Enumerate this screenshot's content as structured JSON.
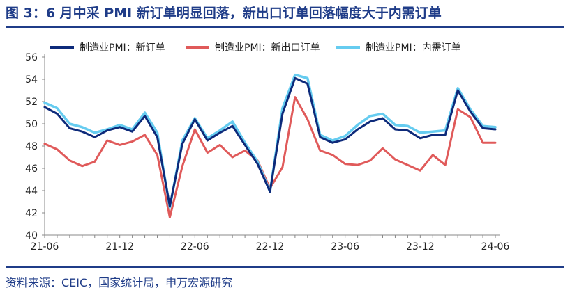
{
  "title": "图 3：6 月中采 PMI 新订单明显回落，新出口订单回落幅度大于内需订单",
  "source": "资料来源：CEIC，国家统计局，申万宏源研究",
  "chart_data": {
    "type": "line",
    "x": [
      "21-06",
      "21-07",
      "21-08",
      "21-09",
      "21-10",
      "21-11",
      "21-12",
      "22-01",
      "22-02",
      "22-03",
      "22-04",
      "22-05",
      "22-06",
      "22-07",
      "22-08",
      "22-09",
      "22-10",
      "22-11",
      "22-12",
      "23-01",
      "23-02",
      "23-03",
      "23-04",
      "23-05",
      "23-06",
      "23-07",
      "23-08",
      "23-09",
      "23-10",
      "23-11",
      "23-12",
      "24-01",
      "24-02",
      "24-03",
      "24-04",
      "24-05",
      "24-06"
    ],
    "x_tick_labels": [
      "21-06",
      "21-12",
      "22-06",
      "22-12",
      "23-06",
      "23-12",
      "24-06"
    ],
    "ylim": [
      40,
      56
    ],
    "y_ticks": [
      "40",
      "42",
      "44",
      "46",
      "48",
      "50",
      "52",
      "54",
      "56"
    ],
    "legend_position": "top",
    "grid": false,
    "series": [
      {
        "name": "制造业PMI：新订单",
        "color": "#0d2a7a",
        "values": [
          51.5,
          50.9,
          49.6,
          49.3,
          48.8,
          49.4,
          49.7,
          49.3,
          50.7,
          48.8,
          42.6,
          48.2,
          50.4,
          48.5,
          49.2,
          49.8,
          48.1,
          46.4,
          43.9,
          50.9,
          54.1,
          53.6,
          48.8,
          48.3,
          48.6,
          49.5,
          50.2,
          50.5,
          49.5,
          49.4,
          48.7,
          49.0,
          49.0,
          53.0,
          51.1,
          49.6,
          49.5
        ]
      },
      {
        "name": "制造业PMI：新出口订单",
        "color": "#e05a5a",
        "values": [
          48.2,
          47.7,
          46.7,
          46.2,
          46.6,
          48.5,
          48.1,
          48.4,
          49.0,
          47.2,
          41.6,
          46.2,
          49.5,
          47.4,
          48.1,
          47.0,
          47.6,
          46.7,
          44.2,
          46.1,
          52.4,
          50.4,
          47.6,
          47.2,
          46.4,
          46.3,
          46.7,
          47.8,
          46.8,
          46.3,
          45.8,
          47.2,
          46.3,
          51.3,
          50.6,
          48.3,
          48.3
        ]
      },
      {
        "name": "制造业PMI：内需订单",
        "color": "#66ccf0",
        "values": [
          51.9,
          51.4,
          50.0,
          49.7,
          49.2,
          49.5,
          49.9,
          49.5,
          51.0,
          49.2,
          42.5,
          48.5,
          50.5,
          48.7,
          49.4,
          50.2,
          48.3,
          46.6,
          43.9,
          51.4,
          54.4,
          54.1,
          49.0,
          48.5,
          48.9,
          49.9,
          50.7,
          50.9,
          49.9,
          49.8,
          49.2,
          49.3,
          49.4,
          53.2,
          51.3,
          49.8,
          49.7
        ]
      }
    ]
  }
}
